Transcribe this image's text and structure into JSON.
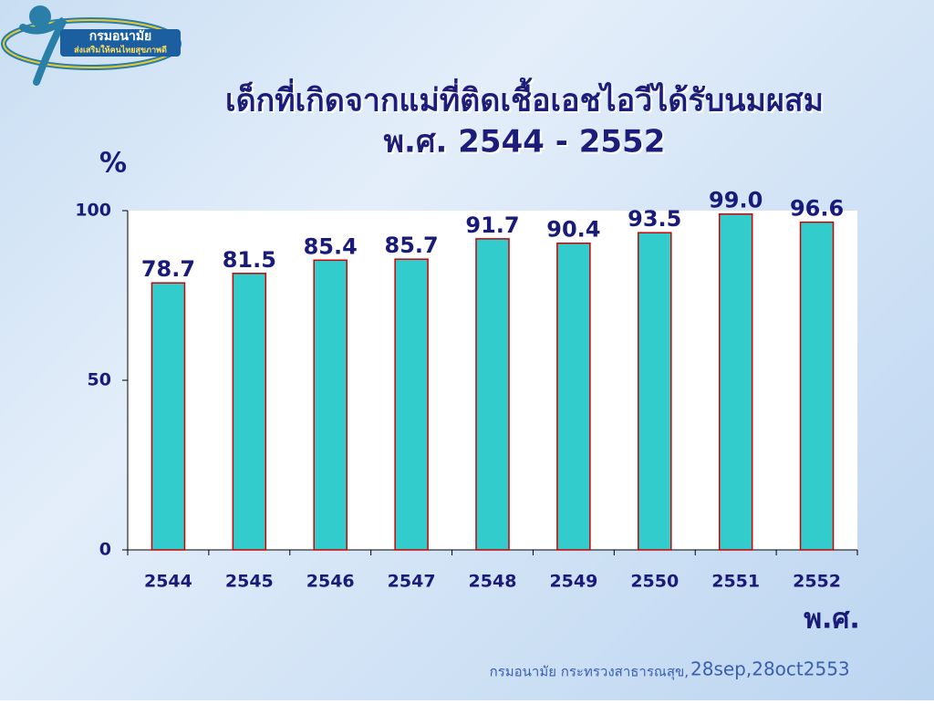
{
  "logo": {
    "title": "กรมอนามัย",
    "slogan": "ส่งเสริมให้คนไทยสุขภาพดี"
  },
  "chart_data": {
    "type": "bar",
    "title": "เด็กที่เกิดจากแม่ที่ติดเชื้อเอชไอวีได้รับนมผสม",
    "subtitle": "พ.ศ. 2544 - 2552",
    "y_label": "%",
    "x_label": "พ.ศ.",
    "categories": [
      "2544",
      "2545",
      "2546",
      "2547",
      "2548",
      "2549",
      "2550",
      "2551",
      "2552"
    ],
    "values": [
      78.7,
      81.5,
      85.4,
      85.7,
      91.7,
      90.4,
      93.5,
      99.0,
      96.6
    ],
    "value_labels": [
      "78.7",
      "81.5",
      "85.4",
      "85.7",
      "91.7",
      "90.4",
      "93.5",
      "99.0",
      "96.6"
    ],
    "color": "#33cccc",
    "edge_color": "#cc0000",
    "ylim": [
      0,
      100
    ],
    "yticks": [
      0,
      50,
      100
    ],
    "grid": false
  },
  "footer": {
    "org": "กรมอนามัย กระทรวงสาธารณสุข,",
    "date": "28sep,28oct2553"
  }
}
